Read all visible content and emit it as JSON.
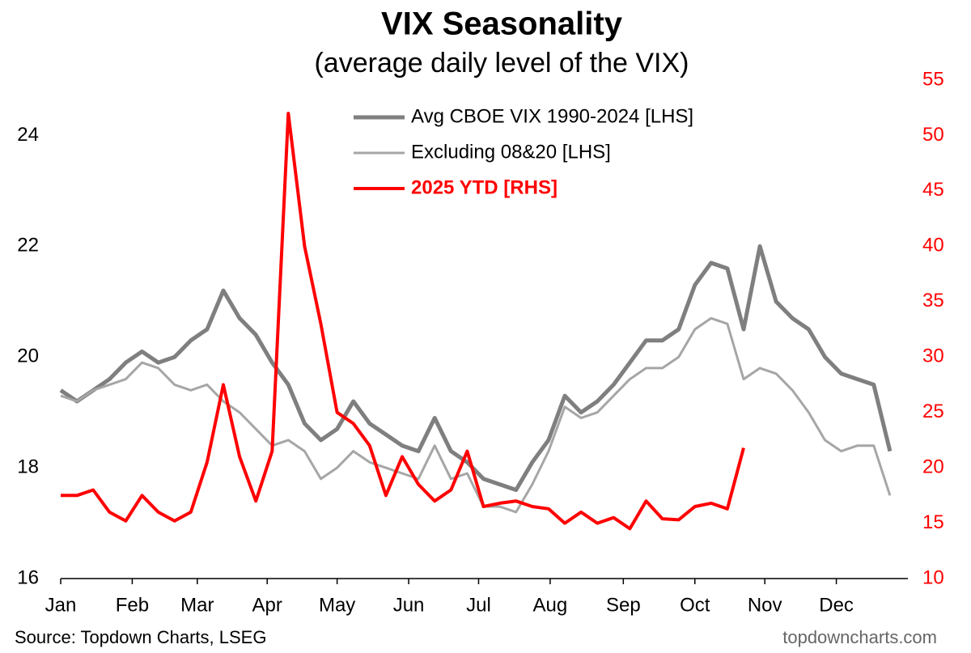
{
  "chart_data": {
    "type": "line",
    "title": "VIX Seasonality",
    "subtitle": "(average daily level of the VIX)",
    "source": "Source: Topdown Charts, LSEG",
    "watermark": "topdowncharts.com",
    "x": [
      0,
      1,
      2,
      3,
      4,
      5,
      6,
      7,
      8,
      9,
      10,
      11,
      12,
      13,
      14,
      15,
      16,
      17,
      18,
      19,
      20,
      21,
      22,
      23,
      24,
      25,
      26,
      27,
      28,
      29,
      30,
      31,
      32,
      33,
      34,
      35,
      36,
      37,
      38,
      39,
      40,
      41,
      42,
      43,
      44,
      45,
      46,
      47,
      48,
      49,
      50,
      51
    ],
    "xlim": [
      0,
      52
    ],
    "xticks": [
      {
        "value": 0,
        "label": "Jan"
      },
      {
        "value": 4.4,
        "label": "Feb"
      },
      {
        "value": 8.4,
        "label": "Mar"
      },
      {
        "value": 12.7,
        "label": "Apr"
      },
      {
        "value": 17,
        "label": "May"
      },
      {
        "value": 21.4,
        "label": "Jun"
      },
      {
        "value": 25.7,
        "label": "Jul"
      },
      {
        "value": 30.1,
        "label": "Aug"
      },
      {
        "value": 34.6,
        "label": "Sep"
      },
      {
        "value": 39,
        "label": "Oct"
      },
      {
        "value": 43.3,
        "label": "Nov"
      },
      {
        "value": 47.7,
        "label": "Dec"
      }
    ],
    "ylim": [
      16,
      25
    ],
    "yticks": [
      16,
      18,
      20,
      22,
      24
    ],
    "y2lim": [
      10,
      55
    ],
    "y2ticks": [
      10,
      15,
      20,
      25,
      30,
      35,
      40,
      45,
      50,
      55
    ],
    "y2color": "#ff0000",
    "series": [
      {
        "name": "Avg CBOE VIX 1990-2024 [LHS]",
        "color": "#7f7f7f",
        "width": 5,
        "bold": false,
        "values": [
          19.4,
          19.2,
          19.4,
          19.6,
          19.9,
          20.1,
          19.9,
          20.0,
          20.3,
          20.5,
          21.2,
          20.7,
          20.4,
          19.9,
          19.5,
          18.8,
          18.5,
          18.7,
          19.2,
          18.8,
          18.6,
          18.4,
          18.3,
          18.9,
          18.3,
          18.1,
          17.8,
          17.7,
          17.6,
          18.1,
          18.5,
          19.3,
          19.0,
          19.2,
          19.5,
          19.9,
          20.3,
          20.3,
          20.5,
          21.3,
          21.7,
          21.6,
          20.5,
          22.0,
          21.0,
          20.7,
          20.5,
          20.0,
          19.7,
          19.6,
          19.5,
          18.3
        ]
      },
      {
        "name": "Excluding 08&20 [LHS]",
        "color": "#a6a6a6",
        "width": 3,
        "bold": false,
        "values": [
          19.3,
          19.2,
          19.4,
          19.5,
          19.6,
          19.9,
          19.8,
          19.5,
          19.4,
          19.5,
          19.2,
          19.0,
          18.7,
          18.4,
          18.5,
          18.3,
          17.8,
          18.0,
          18.3,
          18.1,
          18.0,
          17.9,
          17.8,
          18.4,
          17.8,
          17.9,
          17.3,
          17.3,
          17.2,
          17.7,
          18.3,
          19.1,
          18.9,
          19.0,
          19.3,
          19.6,
          19.8,
          19.8,
          20.0,
          20.5,
          20.7,
          20.6,
          19.6,
          19.8,
          19.7,
          19.4,
          19.0,
          18.5,
          18.3,
          18.4,
          18.4,
          17.5
        ]
      },
      {
        "name": "2025 YTD [RHS]",
        "color": "#ff0000",
        "width": 4,
        "bold": true,
        "axis": "y2",
        "values": [
          17.5,
          17.5,
          18,
          16,
          15.2,
          17.5,
          16,
          15.2,
          16,
          20.5,
          27.5,
          21,
          17,
          21.5,
          52,
          40,
          33,
          25,
          24,
          22,
          17.5,
          21,
          18.5,
          17,
          18,
          21.5,
          16.5,
          16.8,
          17,
          16.5,
          16.3,
          15,
          16,
          15,
          15.5,
          14.5,
          17,
          15.4,
          15.3,
          16.5,
          16.8,
          16.3,
          21.8,
          null,
          null,
          null,
          null,
          null,
          null,
          null,
          null,
          null
        ]
      }
    ]
  }
}
